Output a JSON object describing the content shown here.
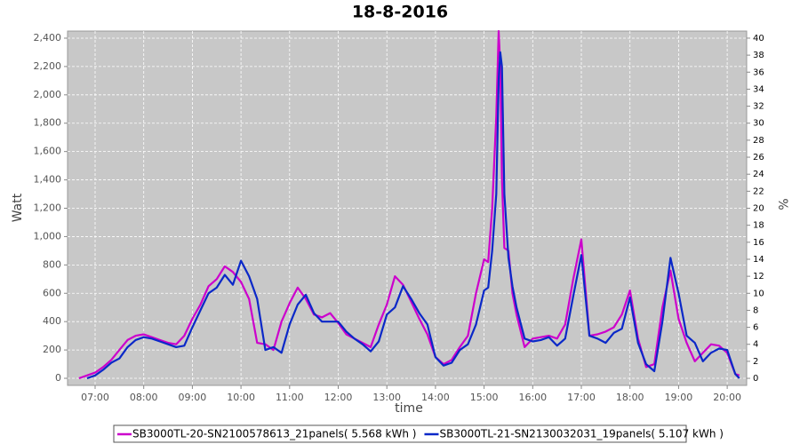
{
  "chart_data": {
    "type": "line",
    "title": "18-8-2016",
    "xlabel": "time",
    "ylabel": "Watt",
    "y2label": "%",
    "x": [
      "06:40",
      "06:50",
      "07:00",
      "07:10",
      "07:20",
      "07:30",
      "07:40",
      "07:50",
      "08:00",
      "08:10",
      "08:20",
      "08:30",
      "08:40",
      "08:50",
      "09:00",
      "09:10",
      "09:20",
      "09:30",
      "09:40",
      "09:50",
      "10:00",
      "10:10",
      "10:20",
      "10:30",
      "10:40",
      "10:50",
      "11:00",
      "11:10",
      "11:20",
      "11:30",
      "11:40",
      "11:50",
      "12:00",
      "12:10",
      "12:20",
      "12:30",
      "12:40",
      "12:50",
      "13:00",
      "13:10",
      "13:20",
      "13:30",
      "13:40",
      "13:50",
      "14:00",
      "14:10",
      "14:20",
      "14:30",
      "14:40",
      "14:50",
      "15:00",
      "15:05",
      "15:10",
      "15:15",
      "15:18",
      "15:20",
      "15:22",
      "15:25",
      "15:30",
      "15:35",
      "15:40",
      "15:50",
      "16:00",
      "16:10",
      "16:20",
      "16:30",
      "16:40",
      "16:50",
      "17:00",
      "17:10",
      "17:20",
      "17:30",
      "17:40",
      "17:50",
      "18:00",
      "18:10",
      "18:20",
      "18:30",
      "18:40",
      "18:50",
      "19:00",
      "19:10",
      "19:20",
      "19:30",
      "19:40",
      "19:50",
      "20:00",
      "20:10",
      "20:15"
    ],
    "series": [
      {
        "name": "SB3000TL-20-SN2100578613_21panels( 5.568 kWh )",
        "color": "#cc00cc",
        "values": [
          0,
          20,
          40,
          80,
          130,
          200,
          270,
          300,
          310,
          290,
          270,
          250,
          240,
          300,
          420,
          520,
          650,
          700,
          790,
          750,
          680,
          560,
          250,
          240,
          200,
          400,
          530,
          640,
          560,
          450,
          430,
          460,
          390,
          310,
          280,
          250,
          220,
          380,
          520,
          720,
          660,
          540,
          420,
          310,
          150,
          100,
          130,
          220,
          300,
          600,
          840,
          820,
          1200,
          1850,
          2450,
          2200,
          1400,
          920,
          900,
          600,
          450,
          220,
          280,
          290,
          300,
          280,
          380,
          700,
          980,
          300,
          310,
          330,
          360,
          450,
          620,
          280,
          80,
          100,
          500,
          760,
          420,
          250,
          120,
          180,
          240,
          230,
          180,
          30,
          20
        ]
      },
      {
        "name": "SB3000TL-21-SN2130032031_19panels( 5.107 kWh )",
        "color": "#0a28c8",
        "values": [
          null,
          0,
          20,
          60,
          110,
          140,
          220,
          270,
          290,
          280,
          260,
          240,
          220,
          230,
          360,
          480,
          600,
          640,
          730,
          660,
          830,
          720,
          560,
          200,
          220,
          180,
          380,
          520,
          590,
          460,
          400,
          400,
          400,
          330,
          280,
          240,
          190,
          260,
          450,
          500,
          650,
          560,
          460,
          380,
          150,
          90,
          110,
          200,
          240,
          380,
          620,
          640,
          900,
          1300,
          2100,
          2300,
          2200,
          1300,
          850,
          650,
          500,
          280,
          260,
          270,
          290,
          230,
          280,
          580,
          870,
          300,
          280,
          250,
          320,
          350,
          570,
          250,
          100,
          50,
          400,
          850,
          600,
          300,
          250,
          120,
          180,
          210,
          200,
          30,
          0
        ]
      }
    ],
    "xlim": [
      "06:26",
      "20:24"
    ],
    "xticks": [
      "07:00",
      "08:00",
      "09:00",
      "10:00",
      "11:00",
      "12:00",
      "13:00",
      "14:00",
      "15:00",
      "16:00",
      "17:00",
      "18:00",
      "19:00",
      "20:00"
    ],
    "ylim": [
      -50,
      2450
    ],
    "yticks": [
      0,
      200,
      400,
      600,
      800,
      {
        "value": 1000,
        "label": "1,000"
      },
      {
        "value": 1200,
        "label": "1,200"
      },
      {
        "value": 1400,
        "label": "1,400"
      },
      {
        "value": 1600,
        "label": "1,600"
      },
      {
        "value": 1800,
        "label": "1,800"
      },
      {
        "value": 2000,
        "label": "2,000"
      },
      {
        "value": 2200,
        "label": "2,200"
      },
      {
        "value": 2400,
        "label": "2,400"
      }
    ],
    "y2lim": [
      -0.83,
      40.83
    ],
    "y2ticks": [
      0,
      2,
      4,
      6,
      8,
      10,
      12,
      14,
      16,
      18,
      20,
      22,
      24,
      26,
      28,
      30,
      32,
      34,
      36,
      38,
      40
    ],
    "grid": true
  }
}
